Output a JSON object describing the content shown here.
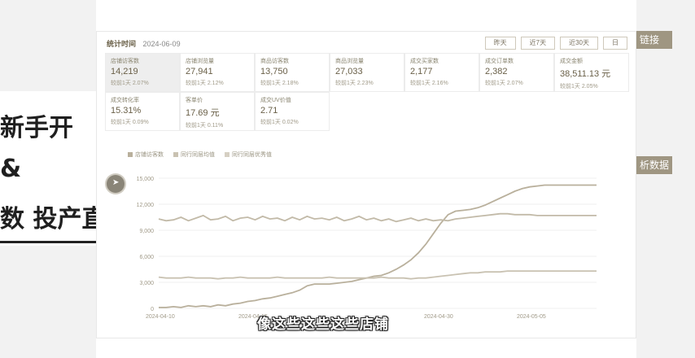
{
  "slide": {
    "line1": "新手开",
    "line2": "&",
    "line3": "数 投产直",
    "chip1": "链接",
    "chip2": "析数据"
  },
  "panel": {
    "title": "统计时间",
    "date": "2024-06-09",
    "range_buttons": [
      "昨天",
      "近7天",
      "近30天",
      "日"
    ]
  },
  "metrics": [
    {
      "label": "店铺访客数",
      "value": "14,219",
      "compare": "较前1天 2.07%"
    },
    {
      "label": "店铺浏览量",
      "value": "27,941",
      "compare": "较前1天 2.12%"
    },
    {
      "label": "商品访客数",
      "value": "13,750",
      "compare": "较前1天 2.18%"
    },
    {
      "label": "商品浏览量",
      "value": "27,033",
      "compare": "较前1天 2.23%"
    },
    {
      "label": "成交买家数",
      "value": "2,177",
      "compare": "较前1天 2.16%"
    },
    {
      "label": "成交订单数",
      "value": "2,382",
      "compare": "较前1天 2.07%"
    },
    {
      "label": "成交金额",
      "value": "38,511.13 元",
      "compare": "较前1天 2.05%"
    },
    {
      "label": "成交转化率",
      "value": "15.31%",
      "compare": "较前1天 0.09%"
    },
    {
      "label": "客单价",
      "value": "17.69 元",
      "compare": "较前1天 0.11%"
    },
    {
      "label": "成交UV价值",
      "value": "2.71",
      "compare": "较前1天 0.02%"
    }
  ],
  "legend": [
    "店铺访客数",
    "同行同层均值",
    "同行同层优秀值"
  ],
  "colors": {
    "accent": "#9f9682",
    "line": "#b9b09c"
  },
  "subtitle": "像这些这些这些店铺",
  "chart_data": {
    "type": "line",
    "y_ticks": [
      "15,000",
      "12,000",
      "9,000",
      "6,000",
      "3,000",
      "0"
    ],
    "x_ticks": [
      "2024-04-10",
      "2024-04-15",
      "",
      "2024-04-30",
      "2024-05-05"
    ],
    "ylim": [
      0,
      15000
    ],
    "x_count": 60,
    "series": [
      {
        "name": "店铺访客数",
        "values": [
          100,
          100,
          200,
          100,
          300,
          200,
          300,
          200,
          400,
          300,
          500,
          600,
          800,
          900,
          1100,
          1200,
          1400,
          1600,
          1800,
          2100,
          2600,
          2800,
          2800,
          2800,
          2900,
          3000,
          3100,
          3300,
          3500,
          3700,
          3800,
          4100,
          4500,
          5000,
          5600,
          6400,
          7400,
          8600,
          9800,
          10800,
          11200,
          11300,
          11400,
          11600,
          11900,
          12300,
          12700,
          13100,
          13500,
          13800,
          14000,
          14100,
          14200,
          14200,
          14200,
          14200,
          14200,
          14200,
          14200,
          14200
        ]
      },
      {
        "name": "同行同层均值",
        "values": [
          10300,
          10100,
          10200,
          10500,
          10100,
          10400,
          10700,
          10200,
          10300,
          10600,
          10100,
          10400,
          10500,
          10200,
          10600,
          10300,
          10400,
          10100,
          10500,
          10200,
          10600,
          10300,
          10400,
          10200,
          10500,
          10100,
          10300,
          10600,
          10200,
          10400,
          10100,
          10300,
          10000,
          10200,
          10400,
          10100,
          10300,
          10100,
          10200,
          10100,
          10300,
          10400,
          10500,
          10600,
          10700,
          10800,
          10900,
          10900,
          10800,
          10800,
          10800,
          10700,
          10700,
          10700,
          10700,
          10700,
          10700,
          10700,
          10700,
          10700
        ]
      },
      {
        "name": "同行同层优秀值",
        "values": [
          3600,
          3500,
          3500,
          3500,
          3600,
          3500,
          3500,
          3500,
          3400,
          3500,
          3500,
          3600,
          3500,
          3500,
          3500,
          3500,
          3600,
          3500,
          3500,
          3500,
          3500,
          3500,
          3500,
          3600,
          3500,
          3500,
          3500,
          3500,
          3500,
          3500,
          3600,
          3500,
          3500,
          3500,
          3400,
          3500,
          3500,
          3600,
          3700,
          3800,
          3900,
          4000,
          4100,
          4100,
          4200,
          4200,
          4200,
          4300,
          4300,
          4300,
          4300,
          4300,
          4300,
          4300,
          4300,
          4300,
          4300,
          4300,
          4300,
          4300
        ]
      }
    ]
  }
}
